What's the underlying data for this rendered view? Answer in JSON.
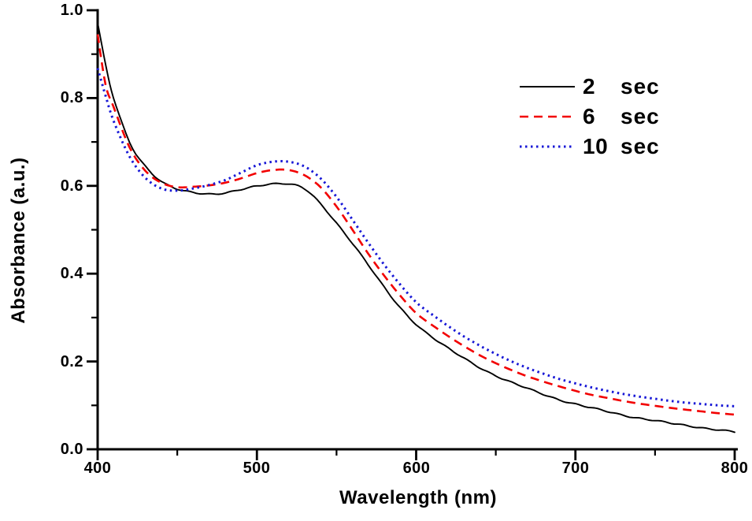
{
  "chart_data": {
    "type": "line",
    "title": "",
    "xlabel": "Wavelength (nm)",
    "ylabel": "Absorbance (a.u.)",
    "xlim": [
      400,
      800
    ],
    "ylim": [
      0.0,
      1.0
    ],
    "grid": false,
    "legend_position": "top-right",
    "axis_color": "#000000",
    "background_color": "#ffffff",
    "x_tick_labels": [
      "400",
      "500",
      "600",
      "700",
      "800"
    ],
    "y_tick_labels": [
      "0.0",
      "0.2",
      "0.4",
      "0.6",
      "0.8",
      "1.0"
    ],
    "x_major_ticks": [
      400,
      500,
      600,
      700,
      800
    ],
    "x_minor_ticks": [
      450,
      550,
      650,
      750
    ],
    "y_major_ticks": [
      0.0,
      0.2,
      0.4,
      0.6,
      0.8,
      1.0
    ],
    "y_minor_ticks": [
      0.1,
      0.3,
      0.5,
      0.7,
      0.9
    ],
    "x": [
      400,
      405,
      410,
      420,
      430,
      440,
      450,
      460,
      470,
      480,
      490,
      500,
      510,
      520,
      530,
      540,
      550,
      560,
      570,
      580,
      590,
      600,
      610,
      620,
      630,
      640,
      650,
      660,
      670,
      680,
      690,
      700,
      710,
      720,
      730,
      740,
      750,
      760,
      770,
      780,
      790,
      800
    ],
    "series": [
      {
        "name": "2 sec",
        "color": "#000000",
        "style": "solid",
        "values": [
          0.97,
          0.875,
          0.8,
          0.7,
          0.645,
          0.61,
          0.592,
          0.585,
          0.582,
          0.584,
          0.591,
          0.599,
          0.605,
          0.605,
          0.593,
          0.558,
          0.515,
          0.47,
          0.42,
          0.368,
          0.322,
          0.285,
          0.256,
          0.23,
          0.207,
          0.186,
          0.168,
          0.152,
          0.138,
          0.125,
          0.113,
          0.103,
          0.094,
          0.086,
          0.078,
          0.071,
          0.065,
          0.059,
          0.054,
          0.049,
          0.044,
          0.039
        ]
      },
      {
        "name": "6 sec",
        "color": "#f20000",
        "style": "dashed",
        "values": [
          0.945,
          0.83,
          0.78,
          0.688,
          0.634,
          0.607,
          0.597,
          0.598,
          0.601,
          0.607,
          0.617,
          0.629,
          0.636,
          0.636,
          0.624,
          0.597,
          0.553,
          0.5,
          0.445,
          0.395,
          0.35,
          0.31,
          0.283,
          0.258,
          0.235,
          0.214,
          0.196,
          0.18,
          0.166,
          0.154,
          0.143,
          0.133,
          0.124,
          0.117,
          0.11,
          0.104,
          0.099,
          0.094,
          0.09,
          0.086,
          0.082,
          0.079
        ]
      },
      {
        "name": "10 sec",
        "color": "#1717d6",
        "style": "dotted",
        "values": [
          0.868,
          0.805,
          0.748,
          0.667,
          0.618,
          0.594,
          0.589,
          0.594,
          0.602,
          0.613,
          0.63,
          0.647,
          0.655,
          0.655,
          0.644,
          0.617,
          0.575,
          0.523,
          0.47,
          0.42,
          0.375,
          0.335,
          0.307,
          0.281,
          0.257,
          0.236,
          0.217,
          0.2,
          0.185,
          0.172,
          0.16,
          0.15,
          0.141,
          0.133,
          0.126,
          0.12,
          0.115,
          0.11,
          0.106,
          0.103,
          0.1,
          0.098
        ]
      }
    ],
    "legend": [
      {
        "num": "2",
        "unit": "sec"
      },
      {
        "num": "6",
        "unit": "sec"
      },
      {
        "num": "10",
        "unit": "sec"
      }
    ]
  }
}
